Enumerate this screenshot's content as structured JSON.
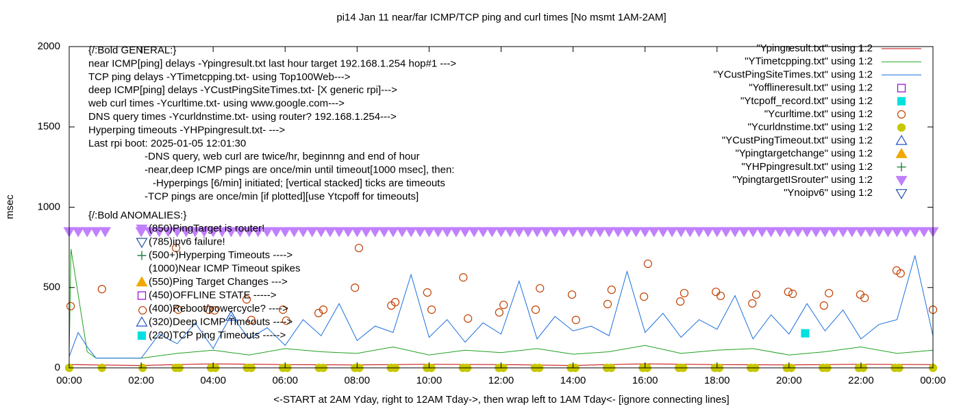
{
  "chart_data": {
    "type": "line",
    "title": "pi14 Jan 11  near/far ICMP/TCP ping and curl times [No msmt 1AM-2AM]",
    "ylabel": "msec",
    "xlabel": "<-START at 2AM Yday, right to 12AM Tday->, then wrap left to 1AM Tday<- [ignore connecting lines]",
    "xlim": [
      0,
      24
    ],
    "xticks": [
      {
        "value": 0,
        "label": "00:00"
      },
      {
        "value": 2,
        "label": "02:00"
      },
      {
        "value": 4,
        "label": "04:00"
      },
      {
        "value": 6,
        "label": "06:00"
      },
      {
        "value": 8,
        "label": "08:00"
      },
      {
        "value": 10,
        "label": "10:00"
      },
      {
        "value": 12,
        "label": "12:00"
      },
      {
        "value": 14,
        "label": "14:00"
      },
      {
        "value": 16,
        "label": "16:00"
      },
      {
        "value": 18,
        "label": "18:00"
      },
      {
        "value": 20,
        "label": "20:00"
      },
      {
        "value": 22,
        "label": "22:00"
      },
      {
        "value": 24,
        "label": "00:00"
      }
    ],
    "ylim": [
      0,
      2000
    ],
    "yticks": [
      0,
      500,
      1000,
      1500,
      2000
    ],
    "legend": "top-right",
    "notes": [
      "{/:Bold GENERAL:}",
      "near ICMP[ping] delays -Ypingresult.txt last hour target 192.168.1.254 hop#1 --->",
      "TCP ping delays -YTimetcpping.txt- using Top100Web--->",
      "deep ICMP[ping] delays -YCustPingSiteTimes.txt- [X generic rpi]--->",
      "web curl times -Ycurltime.txt- using www.google.com--->",
      "DNS query times -Ycurldnstime.txt- using router? 192.168.1.254--->",
      "Hyperping timeouts -YHPpingresult.txt- --->",
      "Last rpi boot: 2025-01-05 12:01:30",
      "-DNS query, web curl are twice/hr, beginnng and end of hour",
      "-near,deep ICMP pings are once/min until timeout[1000 msec], then:",
      "-Hyperpings [6/min] initiated; [vertical stacked] ticks are timeouts",
      "-TCP pings are once/min [if plotted][use Ytcpoff for timeouts]",
      "{/:Bold ANOMALIES:}"
    ],
    "anomaly_key": [
      "(850)PingTarget is router!",
      "(785)ipv6 failure!",
      "(500+)Hyperping Timeouts ---->",
      "(1000)Near ICMP Timeout spikes",
      "(550)Ping Target Changes --->",
      "(450)OFFLINE STATE ----->",
      "(400)Reboot/powercycle? ---->",
      "(320)Deep ICMP Timeouts ---->",
      "(220)TCP ping Timeouts ----->"
    ],
    "series": [
      {
        "name": "\"Ypingresult.txt\" using 1:2",
        "style": "line",
        "color": "#c00000",
        "x": [
          0,
          2,
          4,
          6,
          8,
          10,
          12,
          14,
          16,
          18,
          20,
          22,
          24
        ],
        "values": [
          20,
          15,
          25,
          20,
          18,
          22,
          20,
          15,
          25,
          20,
          18,
          22,
          20
        ]
      },
      {
        "name": "\"YTimetcpping.txt\" using 1:2",
        "style": "line",
        "color": "#1fa01f",
        "x": [
          0,
          0.05,
          0.5,
          0.75,
          2,
          3,
          4,
          5,
          6,
          7,
          8,
          9,
          10,
          11,
          12,
          13,
          14,
          15,
          16,
          17,
          18,
          19,
          20,
          21,
          22,
          23,
          24
        ],
        "values": [
          80,
          740,
          100,
          60,
          60,
          90,
          110,
          80,
          120,
          100,
          90,
          130,
          80,
          110,
          95,
          120,
          85,
          100,
          140,
          90,
          110,
          120,
          80,
          100,
          130,
          90,
          110
        ]
      },
      {
        "name": "\"YCustPingSiteTimes.txt\" using 1:2",
        "style": "line",
        "color": "#1a6fdc",
        "x": [
          0,
          0.25,
          0.5,
          0.75,
          2,
          2.5,
          3,
          3.5,
          4,
          4.5,
          5,
          5.5,
          6,
          6.5,
          7,
          7.5,
          8,
          8.5,
          9,
          9.5,
          10,
          10.5,
          11,
          11.5,
          12,
          12.5,
          13,
          13.5,
          14,
          14.5,
          15,
          15.5,
          16,
          16.5,
          17,
          17.5,
          18,
          18.5,
          19,
          19.5,
          20,
          20.5,
          21,
          21.5,
          22,
          22.5,
          23,
          23.5,
          24
        ],
        "values": [
          70,
          220,
          130,
          60,
          60,
          210,
          150,
          280,
          120,
          330,
          180,
          250,
          140,
          300,
          200,
          400,
          170,
          260,
          220,
          580,
          190,
          300,
          160,
          280,
          210,
          540,
          180,
          320,
          230,
          260,
          200,
          600,
          220,
          340,
          190,
          300,
          240,
          450,
          180,
          330,
          210,
          400,
          230,
          360,
          180,
          270,
          300,
          700,
          200
        ]
      },
      {
        "name": "\"Yofflineresult.txt\" using 1:2",
        "style": "square-open",
        "color": "#9400d3",
        "x": [],
        "values": []
      },
      {
        "name": "\"Ytcpoff_record.txt\" using 1:2",
        "style": "square-filled",
        "color": "#00e0e0",
        "x": [
          20.45
        ],
        "values": [
          215
        ]
      },
      {
        "name": "\"Ycurltime.txt\" using 1:2",
        "style": "circle-open",
        "color": "#c04000",
        "x": [
          0.04,
          0.91,
          2.04,
          2.97,
          3.03,
          3.88,
          4.04,
          4.93,
          5.06,
          5.94,
          6.03,
          6.93,
          7.06,
          7.94,
          8.05,
          8.95,
          9.06,
          9.95,
          10.07,
          10.95,
          11.08,
          11.95,
          12.07,
          12.96,
          13.08,
          13.97,
          14.08,
          14.96,
          15.07,
          15.97,
          16.08,
          16.98,
          17.09,
          17.97,
          18.1,
          18.98,
          19.09,
          19.98,
          20.1,
          20.97,
          21.11,
          21.98,
          22.1,
          22.99,
          23.1,
          24
        ],
        "values": [
          384,
          490,
          358,
          746,
          362,
          362,
          358,
          426,
          298,
          362,
          294,
          341,
          362,
          499,
          746,
          388,
          409,
          469,
          362,
          563,
          307,
          345,
          392,
          362,
          495,
          456,
          298,
          397,
          486,
          443,
          648,
          413,
          465,
          473,
          448,
          401,
          456,
          473,
          461,
          388,
          465,
          456,
          435,
          606,
          588,
          362
        ]
      },
      {
        "name": "\"Ycurldnstime.txt\" using 1:2",
        "style": "circle-filled",
        "color": "#c8c800",
        "x": [
          0,
          0.91,
          2.04,
          2.96,
          3.06,
          3.94,
          4.06,
          4.94,
          5.06,
          5.94,
          6.06,
          6.94,
          7.06,
          7.94,
          8.06,
          8.94,
          9.06,
          9.94,
          10.06,
          10.94,
          11.06,
          11.94,
          12.06,
          12.94,
          13.06,
          13.94,
          14.06,
          14.94,
          15.06,
          15.94,
          16.06,
          16.94,
          17.06,
          17.94,
          18.06,
          18.94,
          19.06,
          19.94,
          20.06,
          20.94,
          21.06,
          21.94,
          22.06,
          22.94,
          23.06,
          24
        ],
        "values": [
          0,
          0,
          0,
          0,
          0,
          0,
          0,
          0,
          0,
          0,
          0,
          0,
          0,
          0,
          0,
          0,
          0,
          0,
          0,
          0,
          0,
          0,
          0,
          0,
          0,
          0,
          0,
          0,
          0,
          0,
          0,
          0,
          0,
          0,
          0,
          0,
          0,
          0,
          0,
          0,
          0,
          0,
          0,
          0,
          0,
          0
        ]
      },
      {
        "name": "\"YCustPingTimeout.txt\" using 1:2",
        "style": "triangle-up-open",
        "color": "#2050c0",
        "x": [
          4.5
        ],
        "values": [
          320
        ]
      },
      {
        "name": "\"Ypingtargetchange\" using 1:2",
        "style": "triangle-up-filled",
        "color": "#f0a800",
        "x": [],
        "values": []
      },
      {
        "name": "\"YHPpingresult.txt\" using 1:2",
        "style": "plus",
        "color": "#208040",
        "x": [],
        "values": []
      },
      {
        "name": "\"YpingtargetISrouter\" using 1:2",
        "style": "triangle-down-filled",
        "color": "#c080ff",
        "x": [
          0,
          0.25,
          0.5,
          0.75,
          1,
          2,
          2.25,
          2.5,
          2.75,
          3,
          3.25,
          3.5,
          3.75,
          4,
          4.25,
          4.5,
          4.75,
          5,
          5.25,
          5.5,
          5.75,
          6,
          6.25,
          6.5,
          6.75,
          7,
          7.25,
          7.5,
          7.75,
          8,
          8.25,
          8.5,
          8.75,
          9,
          9.25,
          9.5,
          9.75,
          10,
          10.25,
          10.5,
          10.75,
          11,
          11.25,
          11.5,
          11.75,
          12,
          12.25,
          12.5,
          12.75,
          13,
          13.25,
          13.5,
          13.75,
          14,
          14.25,
          14.5,
          14.75,
          15,
          15.25,
          15.5,
          15.75,
          16,
          16.25,
          16.5,
          16.75,
          17,
          17.25,
          17.5,
          17.75,
          18,
          18.25,
          18.5,
          18.75,
          19,
          19.25,
          19.5,
          19.75,
          20,
          20.25,
          20.5,
          20.75,
          21,
          21.25,
          21.5,
          21.75,
          22,
          22.25,
          22.5,
          22.75,
          23,
          23.25,
          23.5,
          23.75,
          24
        ],
        "values": [
          850,
          850,
          850,
          850,
          850,
          850,
          850,
          850,
          850,
          850,
          850,
          850,
          850,
          850,
          850,
          850,
          850,
          850,
          850,
          850,
          850,
          850,
          850,
          850,
          850,
          850,
          850,
          850,
          850,
          850,
          850,
          850,
          850,
          850,
          850,
          850,
          850,
          850,
          850,
          850,
          850,
          850,
          850,
          850,
          850,
          850,
          850,
          850,
          850,
          850,
          850,
          850,
          850,
          850,
          850,
          850,
          850,
          850,
          850,
          850,
          850,
          850,
          850,
          850,
          850,
          850,
          850,
          850,
          850,
          850,
          850,
          850,
          850,
          850,
          850,
          850,
          850,
          850,
          850,
          850,
          850,
          850,
          850,
          850,
          850,
          850,
          850,
          850,
          850,
          850,
          850,
          850,
          850,
          850
        ]
      },
      {
        "name": "\"Ynoipv6\" using 1:2",
        "style": "triangle-down-open",
        "color": "#2050a0",
        "x": [],
        "values": []
      }
    ]
  }
}
